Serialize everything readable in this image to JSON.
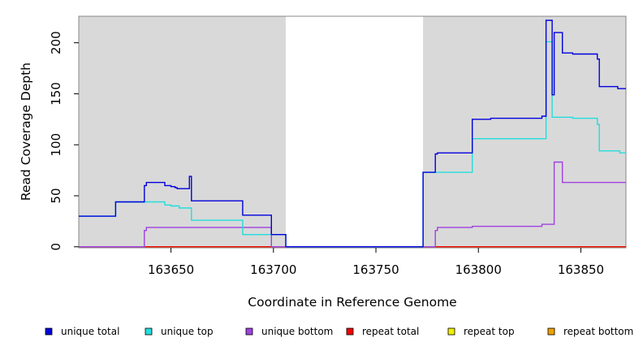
{
  "chart_data": {
    "type": "line",
    "xlabel": "Coordinate in Reference Genome",
    "ylabel": "Read Coverage Depth",
    "xlim": [
      163605,
      163872
    ],
    "ylim": [
      -1,
      226
    ],
    "xticks": [
      163650,
      163700,
      163750,
      163800,
      163850
    ],
    "yticks": [
      0,
      50,
      100,
      150,
      200
    ],
    "shaded_regions": [
      [
        163605,
        163706
      ],
      [
        163773,
        163872
      ]
    ],
    "colors": {
      "shade": "#d9d9d9",
      "unique_total": "#0000dd",
      "unique_top": "#22dddd",
      "unique_bottom": "#a040e0",
      "repeat_total": "#ee0000",
      "repeat_top": "#eeee00",
      "repeat_bottom": "#f0a000"
    },
    "legend": {
      "placement": "bottom",
      "entries": [
        {
          "label": "unique total",
          "color": "#0000dd"
        },
        {
          "label": "unique top",
          "color": "#22dddd"
        },
        {
          "label": "unique bottom",
          "color": "#a040e0"
        },
        {
          "label": "repeat total",
          "color": "#ee0000"
        },
        {
          "label": "repeat top",
          "color": "#eeee00"
        },
        {
          "label": "repeat bottom",
          "color": "#f0a000"
        }
      ]
    },
    "series": [
      {
        "key": "unique_total",
        "color": "#0000dd",
        "x": [
          163605,
          163623,
          163623,
          163637,
          163637,
          163638,
          163638,
          163647,
          163647,
          163650,
          163650,
          163652,
          163652,
          163653,
          163653,
          163659,
          163659,
          163660,
          163660,
          163685,
          163685,
          163699,
          163699,
          163706,
          163706,
          163773,
          163773,
          163779,
          163779,
          163780,
          163780,
          163797,
          163797,
          163806,
          163806,
          163831,
          163831,
          163833,
          163833,
          163836,
          163836,
          163837,
          163837,
          163841,
          163841,
          163846,
          163846,
          163858,
          163858,
          163859,
          163859,
          163868,
          163868,
          163872
        ],
        "y": [
          30,
          30,
          44,
          44,
          60,
          60,
          63,
          63,
          60,
          60,
          59,
          59,
          58,
          58,
          57,
          57,
          69,
          69,
          45,
          45,
          31,
          31,
          12,
          12,
          0,
          0,
          73,
          73,
          91,
          91,
          92,
          92,
          125,
          125,
          126,
          126,
          128,
          128,
          222,
          222,
          149,
          149,
          210,
          210,
          190,
          190,
          189,
          189,
          184,
          184,
          157,
          157,
          155,
          155
        ]
      },
      {
        "key": "unique_top",
        "color": "#22dddd",
        "x": [
          163605,
          163623,
          163623,
          163637,
          163637,
          163647,
          163647,
          163650,
          163650,
          163654,
          163654,
          163660,
          163660,
          163685,
          163685,
          163699,
          163699,
          163706,
          163706,
          163773,
          163773,
          163779,
          163779,
          163797,
          163797,
          163833,
          163833,
          163836,
          163836,
          163846,
          163846,
          163858,
          163858,
          163859,
          163859,
          163869,
          163869,
          163872
        ],
        "y": [
          30,
          30,
          44,
          44,
          44,
          44,
          41,
          41,
          40,
          40,
          38,
          38,
          26,
          26,
          12,
          12,
          12,
          12,
          0,
          0,
          73,
          73,
          73,
          73,
          106,
          106,
          201,
          201,
          127,
          127,
          126,
          126,
          120,
          120,
          94,
          94,
          92,
          92
        ]
      },
      {
        "key": "unique_bottom",
        "color": "#a040e0",
        "x": [
          163605,
          163637,
          163637,
          163638,
          163638,
          163699,
          163699,
          163779,
          163779,
          163780,
          163780,
          163797,
          163797,
          163831,
          163831,
          163837,
          163837,
          163841,
          163841,
          163872
        ],
        "y": [
          0,
          0,
          16,
          16,
          19,
          19,
          0,
          0,
          16,
          16,
          19,
          19,
          20,
          20,
          22,
          22,
          83,
          83,
          63,
          63
        ]
      },
      {
        "key": "repeat_total",
        "color": "#ee0000",
        "x": [
          163605,
          163872
        ],
        "y": [
          0,
          0
        ]
      },
      {
        "key": "repeat_top",
        "color": "#eeee00",
        "x": [
          163605,
          163872
        ],
        "y": [
          0,
          0
        ]
      },
      {
        "key": "repeat_bottom",
        "color": "#f0a000",
        "x": [
          163605,
          163872
        ],
        "y": [
          0,
          0
        ]
      }
    ]
  }
}
